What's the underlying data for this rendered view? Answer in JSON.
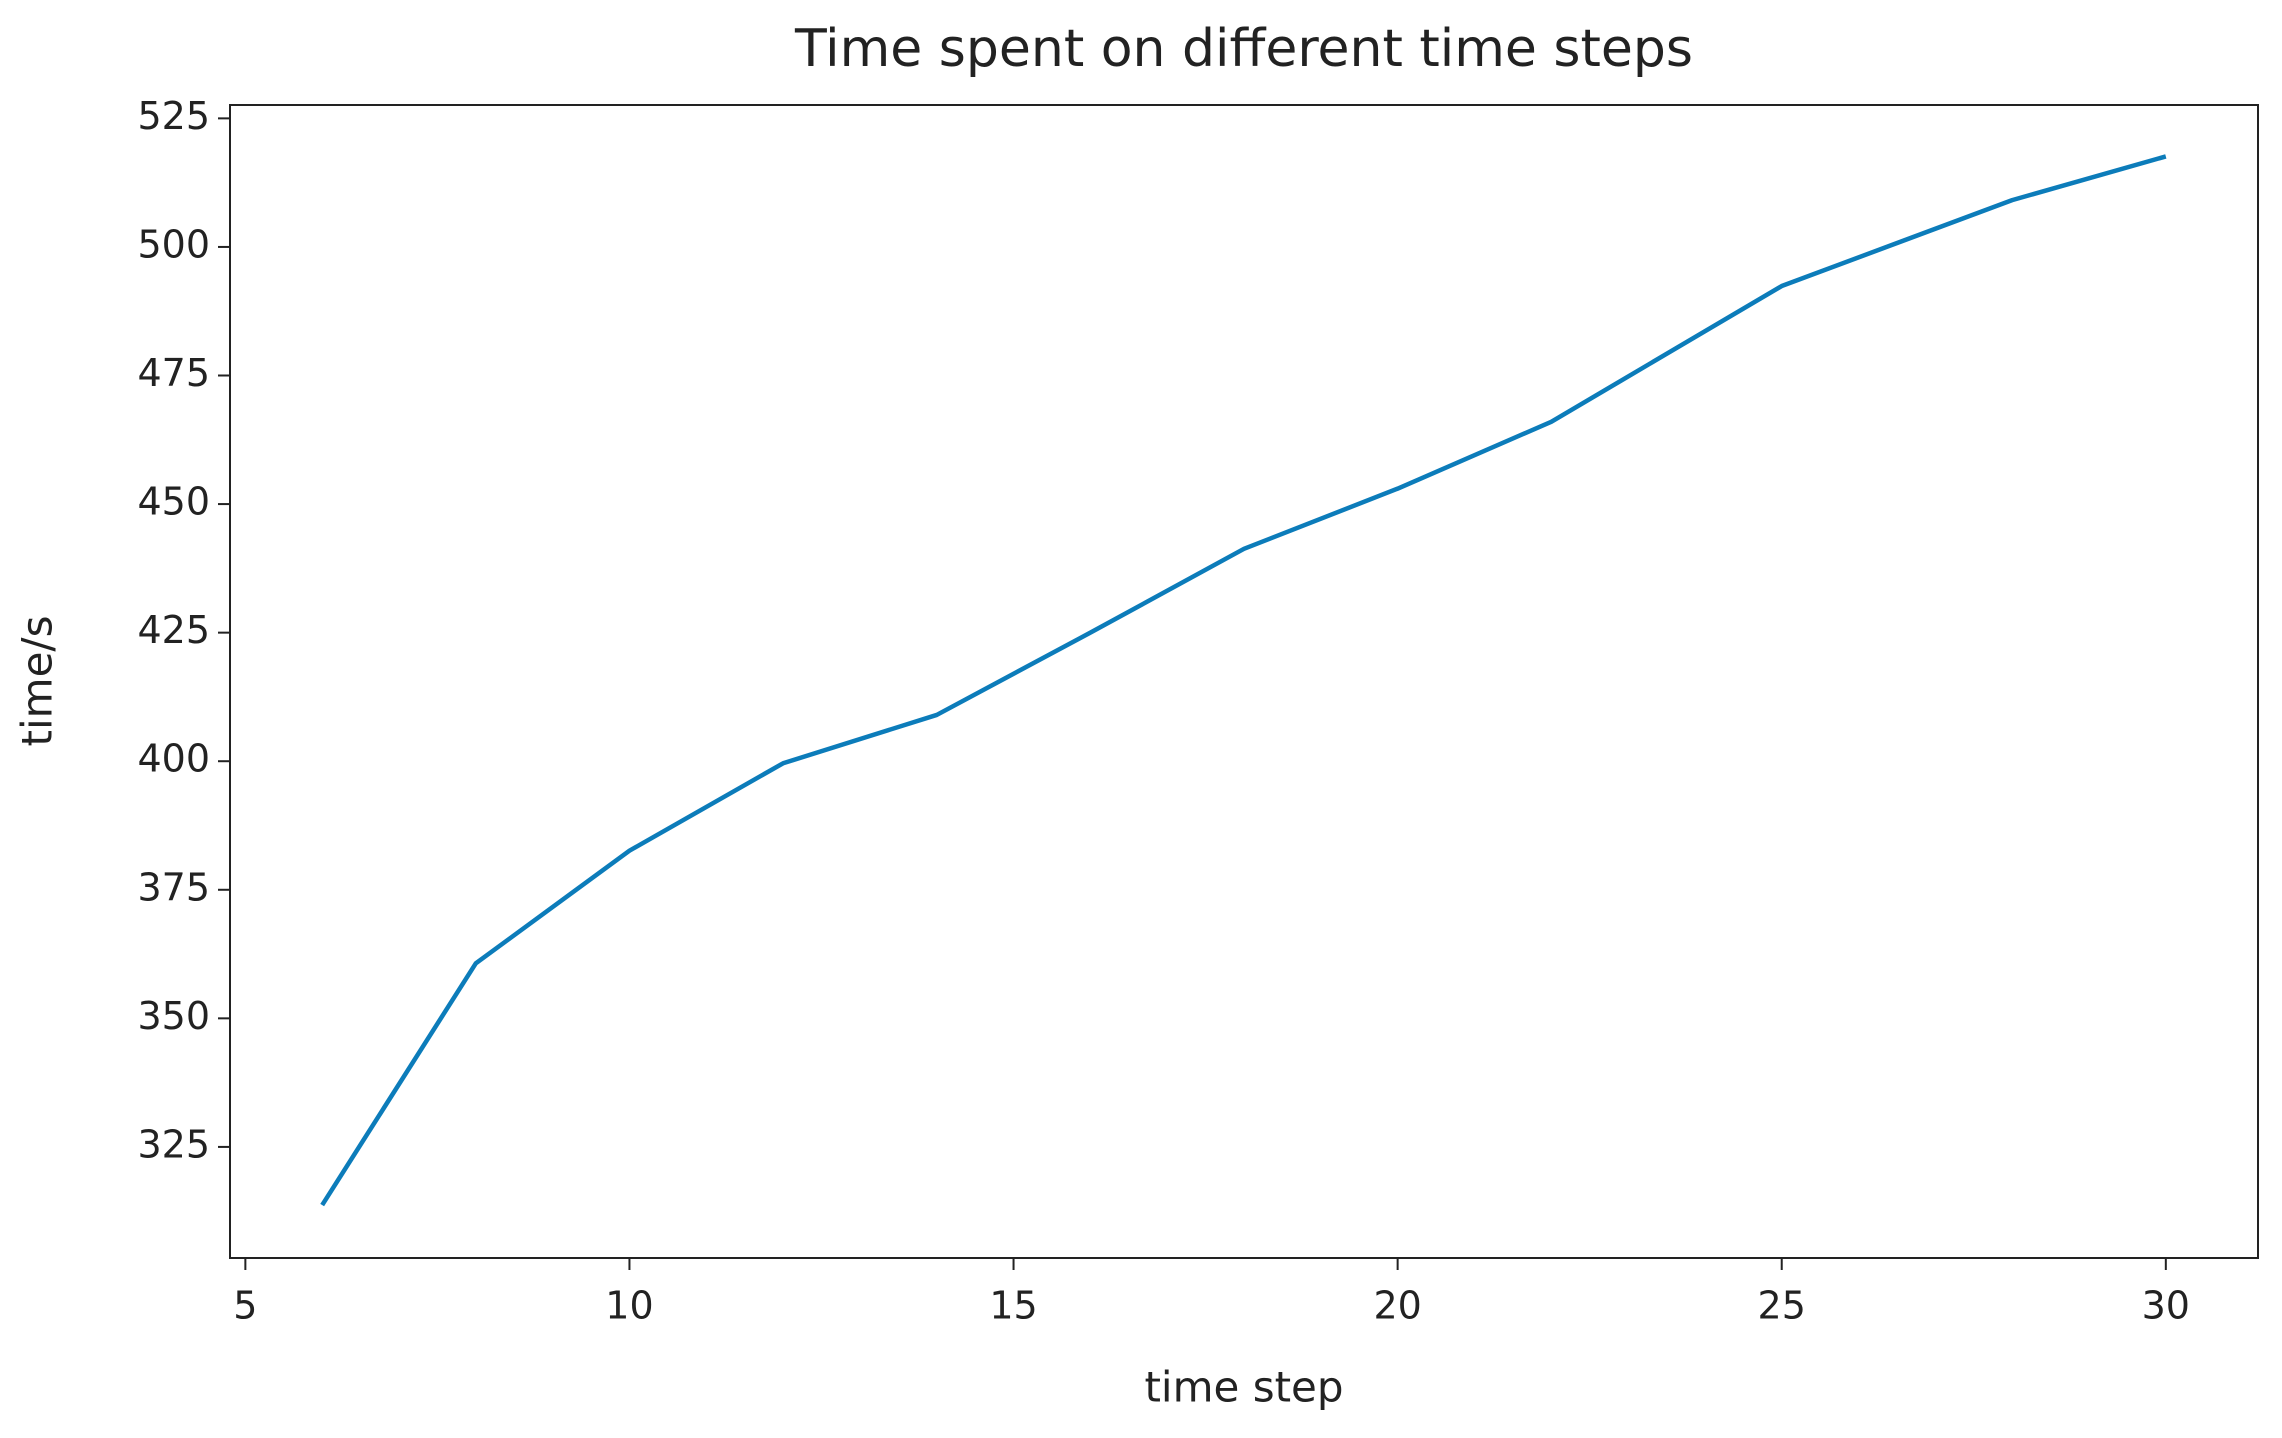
{
  "chart_data": {
    "type": "line",
    "title": "Time spent on different time steps",
    "x_label": "time step",
    "y_label": "time/s",
    "x": [
      6,
      8,
      10,
      12,
      14,
      16,
      18,
      20,
      22,
      25,
      28,
      30
    ],
    "series": [
      {
        "name": "time",
        "color": "#0c7cba",
        "values": [
          313.7,
          360.7,
          382.6,
          399.6,
          409,
          425,
          441.3,
          453,
          466,
          492.4,
          509.1,
          517.6
        ]
      }
    ],
    "xlim": [
      4.8,
      31.2
    ],
    "xticks": [
      5,
      10,
      15,
      20,
      25,
      30
    ],
    "ylim": [
      303.4,
      527.6
    ],
    "yticks": [
      325,
      350,
      375,
      400,
      425,
      450,
      475,
      500,
      525
    ]
  }
}
